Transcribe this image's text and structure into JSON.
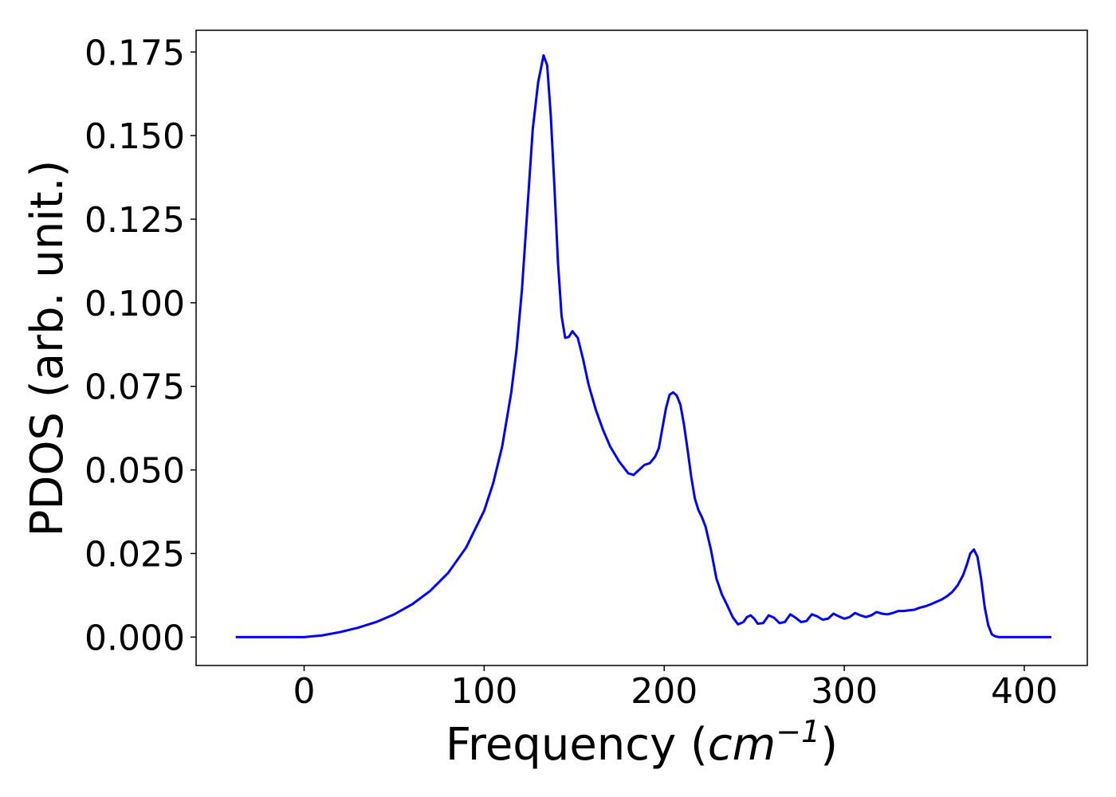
{
  "chart_data": {
    "type": "line",
    "title": "",
    "xlabel": {
      "prefix": "Frequency (",
      "unit_base": "cm",
      "unit_exponent": "−1",
      "suffix": ")"
    },
    "ylabel": "PDOS (arb. unit.)",
    "xlim": [
      -60,
      435
    ],
    "ylim": [
      -0.0085,
      0.1815
    ],
    "xticks": [
      0,
      100,
      200,
      300,
      400
    ],
    "xtick_labels": [
      "0",
      "100",
      "200",
      "300",
      "400"
    ],
    "yticks": [
      0.0,
      0.025,
      0.05,
      0.075,
      0.1,
      0.125,
      0.15,
      0.175
    ],
    "ytick_labels": [
      "0.000",
      "0.025",
      "0.050",
      "0.075",
      "0.100",
      "0.125",
      "0.150",
      "0.175"
    ],
    "grid": false,
    "legend": null,
    "series": [
      {
        "color": "#0000ff",
        "x": [
          -38,
          -20,
          0,
          10,
          20,
          30,
          40,
          50,
          60,
          70,
          80,
          90,
          100,
          105,
          110,
          115,
          118,
          121,
          124,
          127,
          130,
          133,
          135,
          137,
          139,
          141,
          143,
          145,
          147,
          149,
          152,
          155,
          158,
          162,
          166,
          170,
          175,
          180,
          183,
          186,
          189,
          192,
          195,
          197,
          199,
          201,
          203,
          205,
          207,
          209,
          211,
          213,
          215,
          217,
          219,
          221,
          223,
          226,
          229,
          232,
          235,
          238,
          241,
          244,
          246,
          248,
          250,
          252,
          255,
          258,
          261,
          264,
          267,
          270,
          273,
          276,
          279,
          282,
          285,
          288,
          291,
          294,
          297,
          300,
          303,
          306,
          309,
          312,
          315,
          318,
          321,
          324,
          327,
          330,
          333,
          336,
          339,
          342,
          345,
          348,
          351,
          354,
          357,
          360,
          363,
          366,
          368,
          370,
          372,
          374,
          376,
          378,
          380,
          382,
          384,
          386,
          388,
          392,
          400,
          415
        ],
        "y": [
          0.0,
          0.0,
          0.0,
          0.0005,
          0.0015,
          0.0028,
          0.0045,
          0.0068,
          0.0098,
          0.0138,
          0.0192,
          0.0268,
          0.0378,
          0.046,
          0.057,
          0.073,
          0.086,
          0.104,
          0.128,
          0.152,
          0.166,
          0.174,
          0.171,
          0.156,
          0.135,
          0.112,
          0.096,
          0.0895,
          0.0898,
          0.0915,
          0.0895,
          0.083,
          0.0755,
          0.068,
          0.062,
          0.057,
          0.0525,
          0.049,
          0.0485,
          0.05,
          0.0515,
          0.052,
          0.054,
          0.0565,
          0.0625,
          0.0685,
          0.0725,
          0.0732,
          0.0722,
          0.0695,
          0.0635,
          0.056,
          0.048,
          0.0415,
          0.038,
          0.0358,
          0.033,
          0.026,
          0.0175,
          0.0128,
          0.0095,
          0.006,
          0.0038,
          0.0045,
          0.006,
          0.0065,
          0.0055,
          0.004,
          0.0042,
          0.0065,
          0.0058,
          0.0042,
          0.0045,
          0.0068,
          0.0058,
          0.0045,
          0.0048,
          0.0068,
          0.0062,
          0.0052,
          0.0055,
          0.007,
          0.0062,
          0.0055,
          0.006,
          0.0072,
          0.0065,
          0.006,
          0.0065,
          0.0075,
          0.007,
          0.0068,
          0.0072,
          0.0078,
          0.0078,
          0.008,
          0.0082,
          0.0088,
          0.0092,
          0.0098,
          0.0105,
          0.0112,
          0.0122,
          0.0135,
          0.0155,
          0.0185,
          0.0215,
          0.025,
          0.0262,
          0.024,
          0.0175,
          0.009,
          0.0035,
          0.0008,
          0.0002,
          0.0,
          0.0,
          0.0,
          0.0,
          0.0
        ]
      }
    ]
  }
}
